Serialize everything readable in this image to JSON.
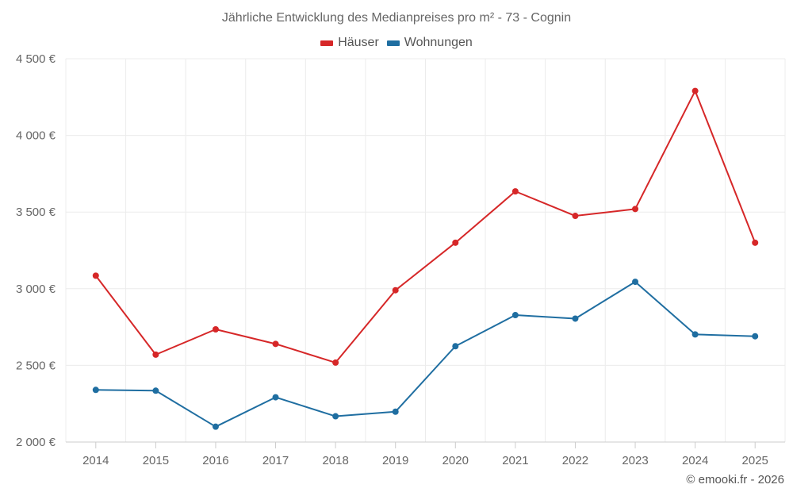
{
  "chart_data": {
    "type": "line",
    "title": "Jährliche Entwicklung des Medianpreises pro m² - 73 - Cognin",
    "categories": [
      "2014",
      "2015",
      "2016",
      "2017",
      "2018",
      "2019",
      "2020",
      "2021",
      "2022",
      "2023",
      "2024",
      "2025"
    ],
    "series": [
      {
        "name": "Häuser",
        "color": "#d62728",
        "values": [
          3085,
          2570,
          2735,
          2640,
          2518,
          2990,
          3300,
          3635,
          3475,
          3520,
          4290,
          3300
        ]
      },
      {
        "name": "Wohnungen",
        "color": "#1f6ea1",
        "values": [
          2340,
          2335,
          2100,
          2292,
          2168,
          2198,
          2625,
          2828,
          2805,
          3045,
          2702,
          2690
        ]
      }
    ],
    "ylim": [
      2000,
      4500
    ],
    "yticks": [
      2000,
      2500,
      3000,
      3500,
      4000,
      4500
    ],
    "ytick_labels": [
      "2 000 €",
      "2 500 €",
      "3 000 €",
      "3 500 €",
      "4 000 €",
      "4 500 €"
    ],
    "grid": true,
    "legend_position": "top-center"
  },
  "credit": "© emooki.fr - 2026"
}
